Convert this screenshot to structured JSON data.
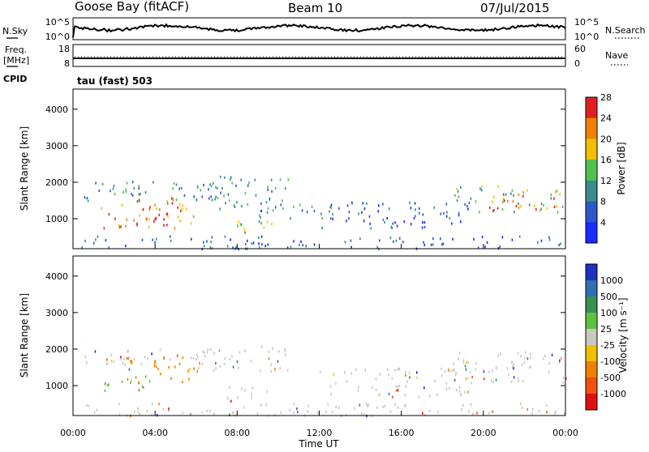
{
  "header": {
    "station": "Goose Bay (fitACF)",
    "beam": "Beam 10",
    "date": "07/Jul/2015"
  },
  "status_panels": {
    "nsky": {
      "label": "N.Sky",
      "tick_top": "10^5",
      "tick_bottom": "10^0"
    },
    "nsearch": {
      "label": "N.Search",
      "tick_top": "10^5",
      "tick_bottom": "10^0"
    },
    "freq": {
      "label_line1": "Freq.",
      "label_line2": "[MHz]",
      "tick_top": "18",
      "tick_bottom": "8"
    },
    "nave": {
      "label": "Nave",
      "tick_top": "60",
      "tick_bottom": "0"
    },
    "cpid": {
      "label": "CPID",
      "program": "tau (fast) 503"
    }
  },
  "chart_data": [
    {
      "type": "heatmap",
      "title": "",
      "xlabel": "",
      "ylabel": "Slant Range [km]",
      "xlim": [
        "00:00",
        "24:00"
      ],
      "ylim": [
        180,
        4550
      ],
      "y_ticks": [
        "1000",
        "2000",
        "3000",
        "4000"
      ],
      "colorbar": {
        "label": "Power [dB]",
        "ticks": [
          "4",
          "8",
          "12",
          "16",
          "20",
          "24",
          "28"
        ],
        "colors": [
          "#1a2bff",
          "#2a5ac8",
          "#3c8c8c",
          "#50c050",
          "#f0c000",
          "#f08000",
          "#e02020"
        ]
      },
      "regions": [
        {
          "t0": 0.5,
          "t1": 7.2,
          "r0": 1450,
          "r1": 2050,
          "level": 2
        },
        {
          "t0": 1.2,
          "t1": 6.2,
          "r0": 750,
          "r1": 1600,
          "level": 5
        },
        {
          "t0": 1.8,
          "t1": 4.5,
          "r0": 800,
          "r1": 1250,
          "level": 6
        },
        {
          "t0": 6.5,
          "t1": 10.5,
          "r0": 1300,
          "r1": 2200,
          "level": 2
        },
        {
          "t0": 7.5,
          "t1": 9.8,
          "r0": 550,
          "r1": 1000,
          "level": 3
        },
        {
          "t0": 9.0,
          "t1": 13.0,
          "r0": 950,
          "r1": 1500,
          "level": 2
        },
        {
          "t0": 12.0,
          "t1": 19.5,
          "r0": 750,
          "r1": 1500,
          "level": 1
        },
        {
          "t0": 18.5,
          "t1": 24.0,
          "r0": 1150,
          "r1": 1950,
          "level": 3
        },
        {
          "t0": 20.0,
          "t1": 23.5,
          "r0": 1250,
          "r1": 1700,
          "level": 5
        },
        {
          "t0": 0.0,
          "t1": 24.0,
          "r0": 200,
          "r1": 550,
          "level": 1
        }
      ]
    },
    {
      "type": "heatmap",
      "title": "",
      "xlabel": "Time UT",
      "ylabel": "Slant Range [km]",
      "xlim": [
        "00:00",
        "24:00"
      ],
      "ylim": [
        180,
        4550
      ],
      "x_ticks": [
        "00:00",
        "04:00",
        "08:00",
        "12:00",
        "16:00",
        "20:00",
        "00:00"
      ],
      "y_ticks": [
        "1000",
        "2000",
        "3000",
        "4000"
      ],
      "colorbar": {
        "label": "Velocity [m s⁻¹]",
        "ticks": [
          "1000",
          "500",
          "100",
          "25",
          "-25",
          "-100",
          "-500",
          "-1000"
        ],
        "colors": [
          "#2030c0",
          "#3070b0",
          "#3a9050",
          "#60c040",
          "#c8c8c0",
          "#f0c000",
          "#f08000",
          "#f05010",
          "#e01010"
        ]
      },
      "regions": [
        {
          "t0": 0.5,
          "t1": 7.0,
          "r0": 1500,
          "r1": 2050,
          "level": 4
        },
        {
          "t0": 1.2,
          "t1": 4.0,
          "r0": 800,
          "r1": 1300,
          "level": 3
        },
        {
          "t0": 2.5,
          "t1": 6.2,
          "r0": 1100,
          "r1": 1800,
          "level": 6
        },
        {
          "t0": 6.5,
          "t1": 10.5,
          "r0": 1400,
          "r1": 2100,
          "level": 4
        },
        {
          "t0": 7.5,
          "t1": 9.5,
          "r0": 550,
          "r1": 1000,
          "level": 4
        },
        {
          "t0": 12.0,
          "t1": 19.5,
          "r0": 700,
          "r1": 1500,
          "level": 4
        },
        {
          "t0": 18.5,
          "t1": 24.0,
          "r0": 1100,
          "r1": 1950,
          "level": 4
        },
        {
          "t0": 0.0,
          "t1": 24.0,
          "r0": 200,
          "r1": 550,
          "level": 4
        }
      ]
    }
  ]
}
